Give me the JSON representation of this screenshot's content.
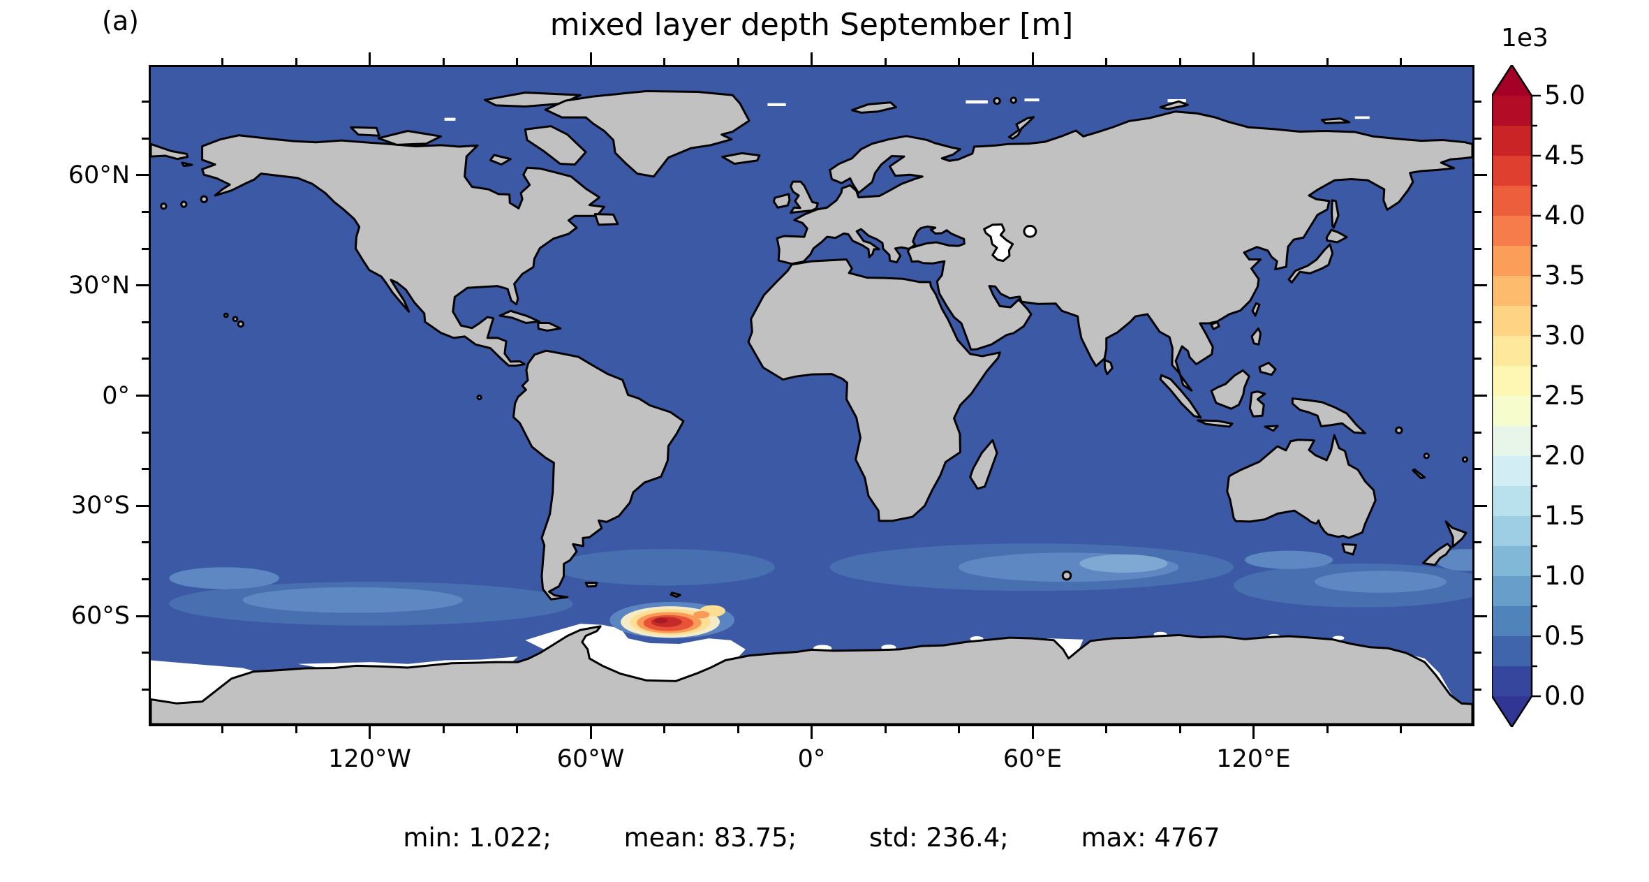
{
  "figure": {
    "panel_label": "(a)",
    "title": "mixed layer depth September [m]"
  },
  "stats": {
    "items": [
      "min: 1.022;",
      "mean: 83.75;",
      "std: 236.4;",
      "max: 4767"
    ]
  },
  "axes": {
    "lat_major": [
      {
        "deg": 60,
        "label": "60°N"
      },
      {
        "deg": 30,
        "label": "30°N"
      },
      {
        "deg": 0,
        "label": "0°"
      },
      {
        "deg": -30,
        "label": "30°S"
      },
      {
        "deg": -60,
        "label": "60°S"
      }
    ],
    "lat_minor_deg": [
      80,
      70,
      50,
      40,
      20,
      10,
      -10,
      -20,
      -40,
      -50,
      -70,
      -80
    ],
    "lon_major": [
      {
        "deg": -120,
        "label": "120°W"
      },
      {
        "deg": -60,
        "label": "60°W"
      },
      {
        "deg": 0,
        "label": "0°"
      },
      {
        "deg": 60,
        "label": "60°E"
      },
      {
        "deg": 120,
        "label": "120°E"
      }
    ],
    "lon_minor_deg": [
      -160,
      -140,
      -100,
      -80,
      -40,
      -20,
      20,
      40,
      80,
      100,
      140,
      160
    ]
  },
  "colorbar": {
    "offset_label": "1e3",
    "tick_labels_top_to_bottom": [
      "5.0",
      "4.5",
      "4.0",
      "3.5",
      "3.0",
      "2.5",
      "2.0",
      "1.5",
      "1.0",
      "0.5",
      "0.0"
    ],
    "band_colors_bottom_to_top": [
      "#36469d",
      "#4065ac",
      "#5183bb",
      "#689fca",
      "#82b8d7",
      "#9dcee3",
      "#b8e0ed",
      "#d3edf4",
      "#e8f6ea",
      "#f7fccd",
      "#fef7b3",
      "#fee89c",
      "#fed484",
      "#fdbb6d",
      "#fb9e5a",
      "#f67d4b",
      "#ed5e3c",
      "#de3f2e",
      "#ca2427",
      "#b20c26"
    ],
    "under_color": "#313695",
    "over_color": "#a50026"
  },
  "map_colors": {
    "ocean": "#3c59a6",
    "land": "#c1c1c1",
    "coast": "#000000",
    "nodata": "#ffffff",
    "so_patch_1": "#486fb0",
    "so_patch_2": "#5d88c2",
    "so_patch_3": "#7fa9d2",
    "hot_halo": "#5b85c0",
    "hot_cream": "#f4ecc8",
    "hot_yellow": "#fede92",
    "hot_orange": "#fa9a58",
    "hot_redorange": "#e85338",
    "hot_red": "#c62a28",
    "hot_darkred": "#a81c26"
  },
  "chart_data": {
    "type": "heatmap",
    "title": "mixed layer depth September [m]",
    "variable": "mixed layer depth",
    "month": "September",
    "units": "m",
    "projection": "global lat-lon map; lon -180..180 (ticks 120°W,60°W,0°,60°E,120°E), lat -90..90 (ticks 60°N,30°N,0°,30°S,60°S)",
    "colorbar": {
      "offset": "1e3",
      "tick_values_1e3": [
        0.0,
        0.5,
        1.0,
        1.5,
        2.0,
        2.5,
        3.0,
        3.5,
        4.0,
        4.5,
        5.0
      ],
      "range_m": [
        0,
        5000
      ],
      "extend": "both",
      "colormap": "RdYlBu reversed, 20 discrete bands",
      "band_width_m": 250
    },
    "stats": {
      "min": 1.022,
      "mean": 83.75,
      "std": 236.4,
      "max": 4767
    },
    "features": [
      {
        "region": "most of global ocean (tropics, N hemisphere)",
        "mld_m": "about 30-300, dark blue"
      },
      {
        "region": "Southern Ocean belt 40S-60S",
        "mld_m": "about 300-800, lighter blue patches"
      },
      {
        "region": "Weddell Sea approx 55W-20W, 58S-67S",
        "mld_m": "about 1500-4767, yellow-orange-red deep convection maximum"
      },
      {
        "region": "Antarctic coastal seas (Ross/Weddell shelves, Amery), Caspian Sea",
        "mld_m": "no data, white"
      },
      {
        "region": "continents",
        "mld_m": "land mask, gray"
      }
    ]
  }
}
